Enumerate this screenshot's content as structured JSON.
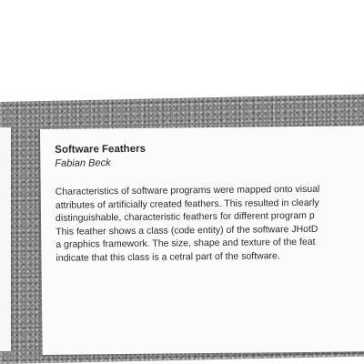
{
  "plaque": {
    "title": "Software Feathers",
    "author": "Fabian Beck",
    "lines": [
      "Characteristics of software programs were mapped onto visual",
      "attributes of artificially created feathers. This resulted in clearly",
      "distinguishable, characteristic feathers for different program p",
      "This feather shows a class (code entity) of the software JHotD",
      "a graphics framework. The size, shape and texture of the feat",
      "indicate that this class is a cetral part of the software."
    ]
  }
}
